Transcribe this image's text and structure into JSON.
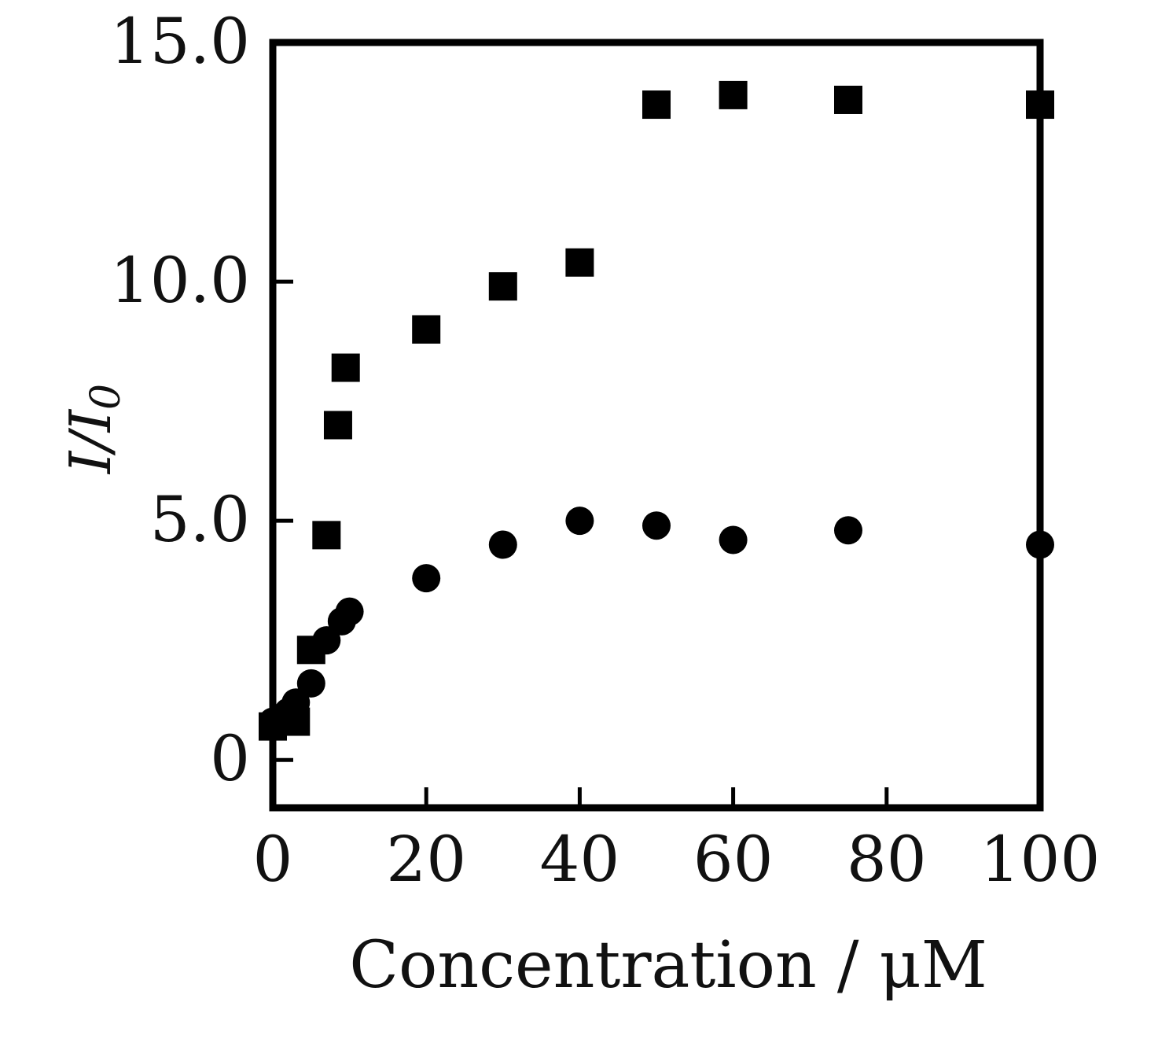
{
  "chart_data": {
    "type": "scatter",
    "xlabel": "Concentration / μM",
    "ylabel": {
      "main": "I/I",
      "sub": "0"
    },
    "xlim": [
      0,
      100
    ],
    "ylim": [
      -1,
      15
    ],
    "x_ticks": [
      0,
      20,
      40,
      60,
      80,
      100
    ],
    "x_tick_labels": [
      "0",
      "20",
      "40",
      "60",
      "80",
      "100"
    ],
    "y_ticks": [
      0,
      5,
      10,
      15
    ],
    "y_tick_labels": [
      "0",
      "5.0",
      "10.0",
      "15.0"
    ],
    "grid": false,
    "series": [
      {
        "marker": "square",
        "color": "#000000",
        "x": [
          0,
          3,
          5,
          7,
          8.5,
          9.5,
          20,
          30,
          40,
          50,
          60,
          75,
          100
        ],
        "y": [
          0.7,
          0.8,
          2.3,
          4.7,
          7.0,
          8.2,
          9.0,
          9.9,
          10.4,
          13.7,
          13.9,
          13.8,
          13.7
        ]
      },
      {
        "marker": "circle",
        "color": "#000000",
        "x": [
          0,
          2,
          3,
          5,
          7,
          9,
          10,
          20,
          30,
          40,
          50,
          60,
          75,
          100
        ],
        "y": [
          0.8,
          1.0,
          1.2,
          1.6,
          2.5,
          2.9,
          3.1,
          3.8,
          4.5,
          5.0,
          4.9,
          4.6,
          4.8,
          4.5
        ]
      }
    ]
  }
}
